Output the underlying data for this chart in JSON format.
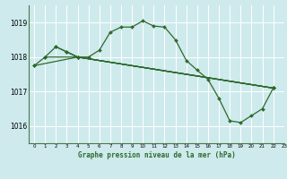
{
  "background_color": "#ceeaec",
  "grid_color": "#ffffff",
  "line_color": "#2d6a2d",
  "title": "Graphe pression niveau de la mer (hPa)",
  "xlim": [
    -0.5,
    23
  ],
  "ylim": [
    1015.5,
    1019.5
  ],
  "yticks": [
    1016,
    1017,
    1018,
    1019
  ],
  "xticks": [
    0,
    1,
    2,
    3,
    4,
    5,
    6,
    7,
    8,
    9,
    10,
    11,
    12,
    13,
    14,
    15,
    16,
    17,
    18,
    19,
    20,
    21,
    22,
    23
  ],
  "curve1": {
    "x": [
      0,
      1,
      2,
      3,
      4,
      5,
      6,
      7,
      8,
      9,
      10,
      11,
      12,
      13,
      14,
      15,
      16,
      17,
      18,
      19,
      20,
      21,
      22
    ],
    "y": [
      1017.75,
      1018.0,
      1018.3,
      1018.15,
      1018.0,
      1018.0,
      1018.2,
      1018.72,
      1018.87,
      1018.87,
      1019.05,
      1018.9,
      1018.87,
      1018.5,
      1017.9,
      1017.62,
      1017.35,
      1016.8,
      1016.15,
      1016.1,
      1016.3,
      1016.5,
      1017.1
    ]
  },
  "line_a": {
    "x": [
      0,
      4,
      22
    ],
    "y": [
      1017.75,
      1018.0,
      1017.1
    ]
  },
  "line_b": {
    "x": [
      1,
      4,
      22
    ],
    "y": [
      1018.0,
      1018.0,
      1017.1
    ]
  },
  "line_c": {
    "x": [
      2,
      4,
      22
    ],
    "y": [
      1018.3,
      1018.0,
      1017.1
    ]
  },
  "line_d": {
    "x": [
      3,
      4,
      22
    ],
    "y": [
      1018.15,
      1018.0,
      1017.1
    ]
  }
}
